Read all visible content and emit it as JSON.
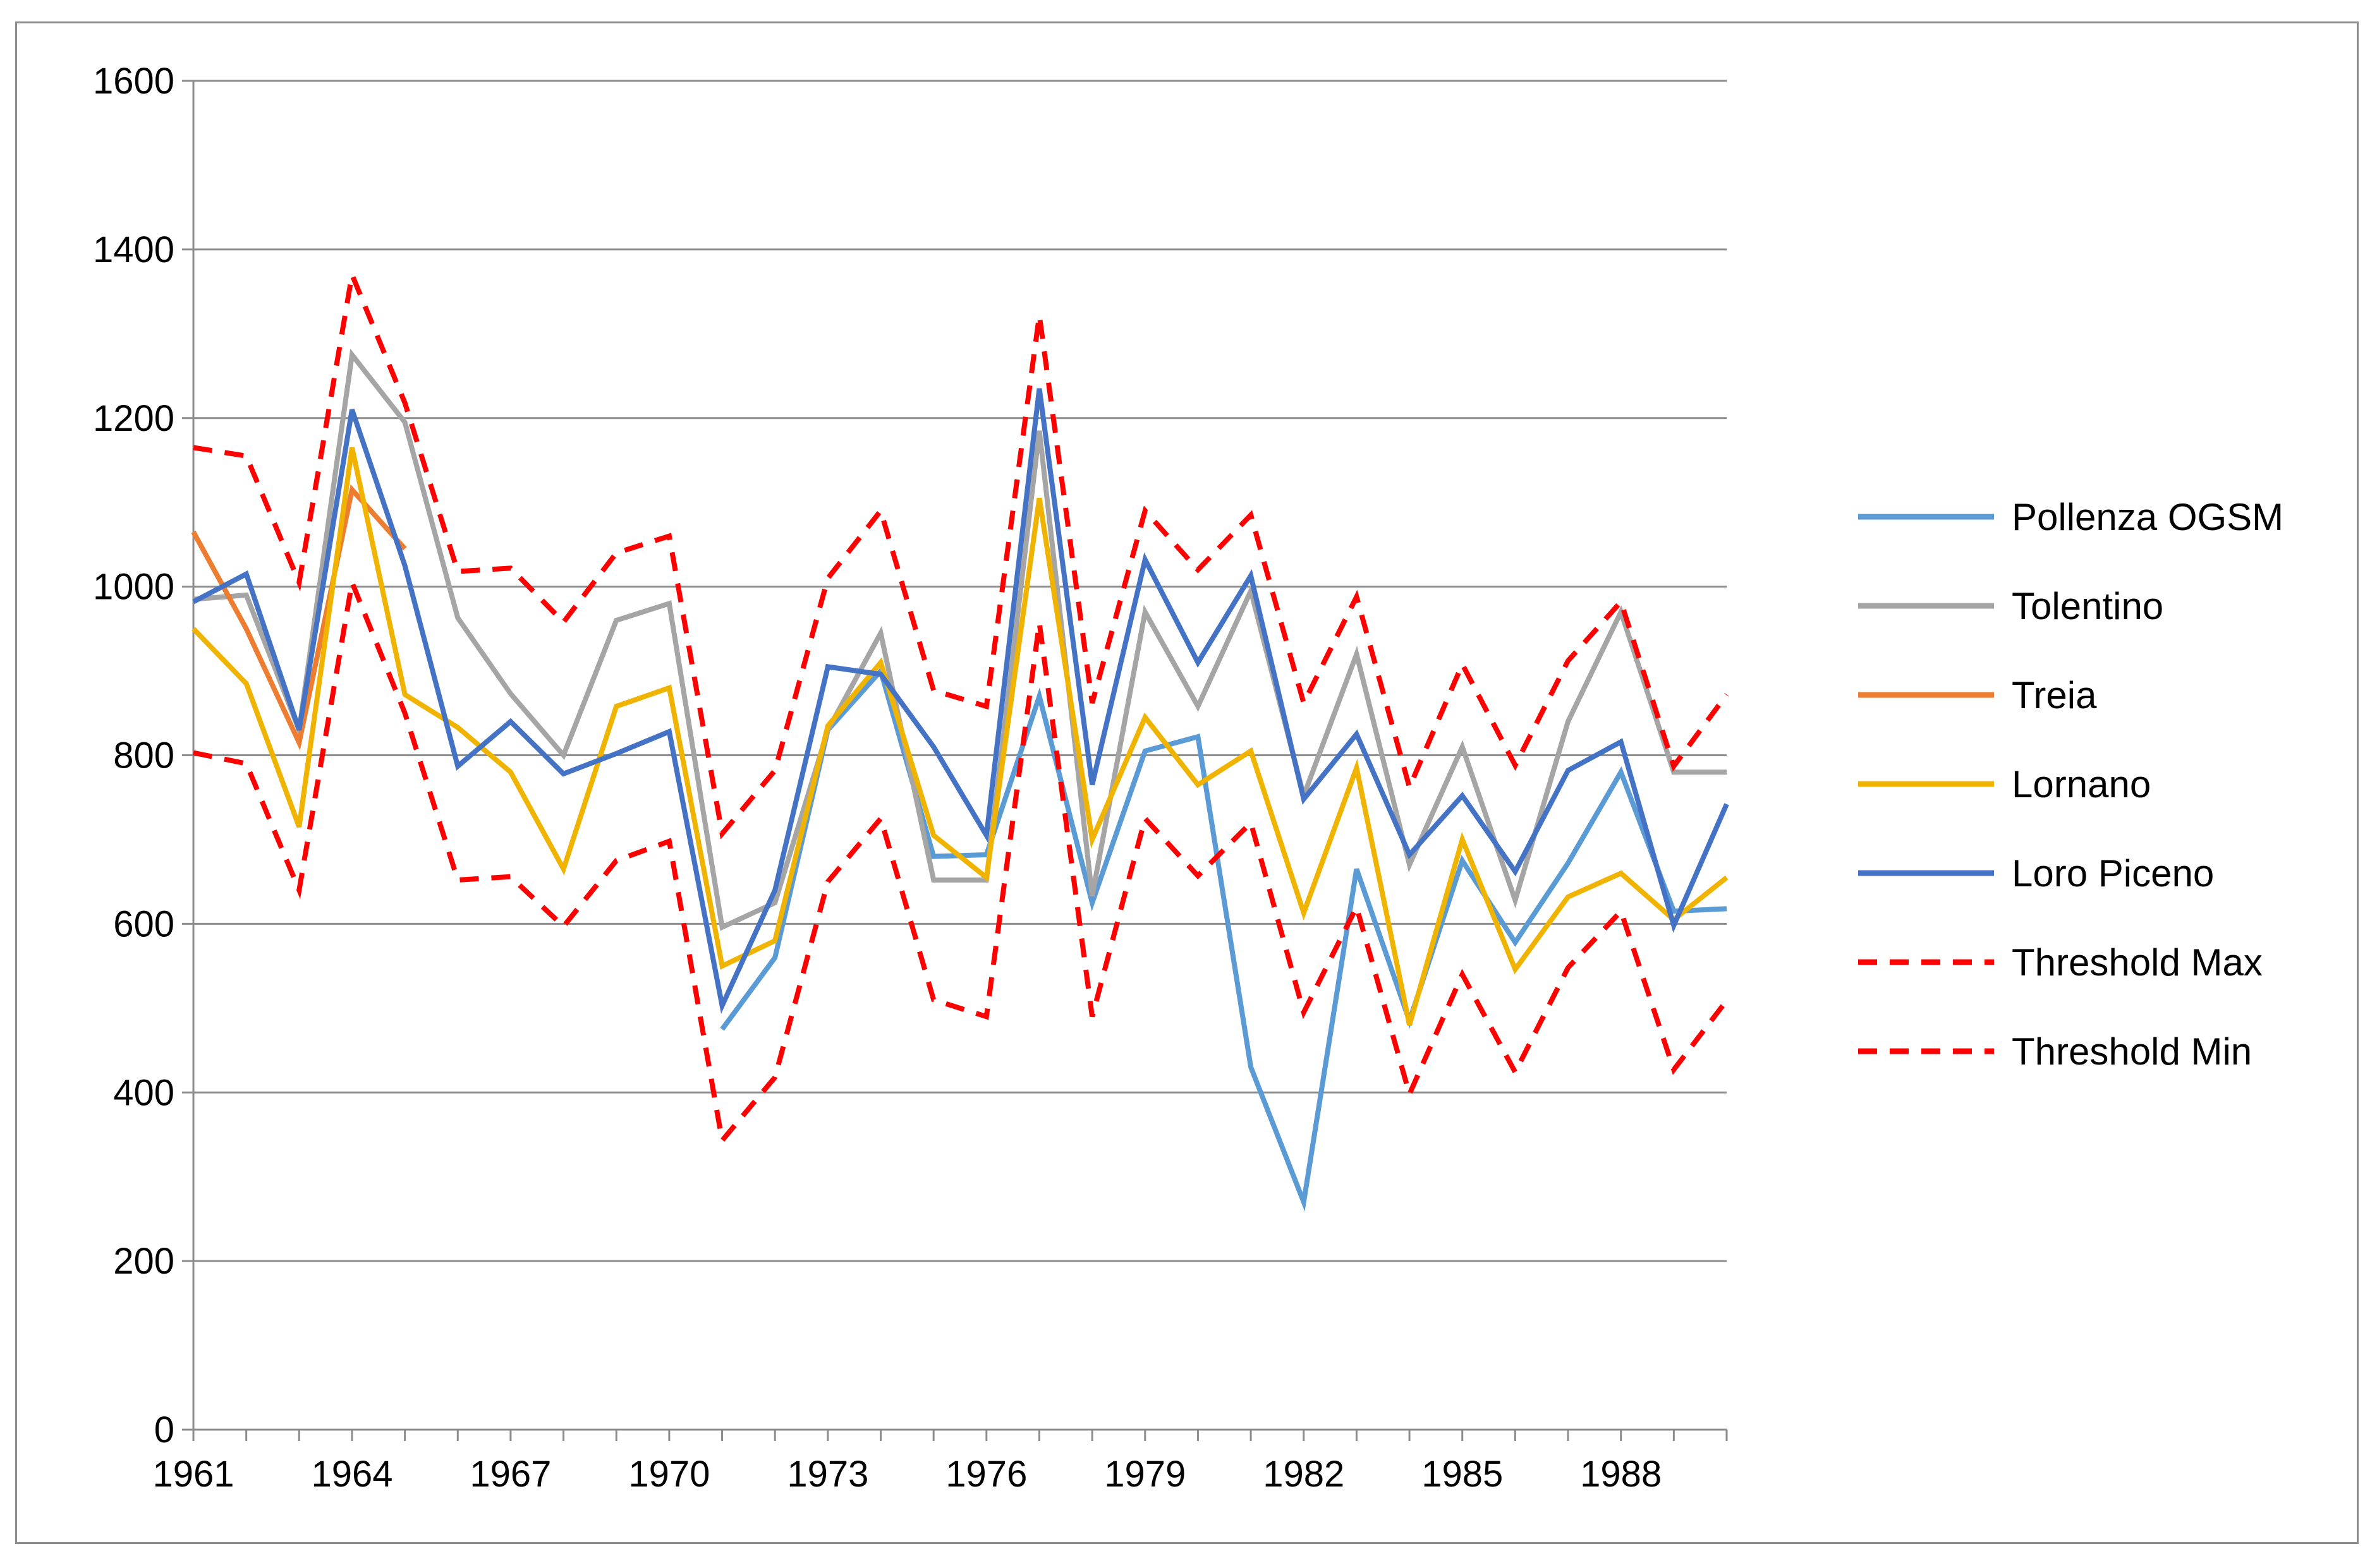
{
  "chart_data": {
    "type": "line",
    "title": "",
    "xlabel": "",
    "ylabel": "",
    "ylim": [
      0,
      1600
    ],
    "yticks": [
      0,
      200,
      400,
      600,
      800,
      1000,
      1200,
      1400,
      1600
    ],
    "x": [
      1961,
      1962,
      1963,
      1964,
      1965,
      1966,
      1967,
      1968,
      1969,
      1970,
      1971,
      1972,
      1973,
      1974,
      1975,
      1976,
      1977,
      1978,
      1979,
      1980,
      1981,
      1982,
      1983,
      1984,
      1985,
      1986,
      1987,
      1988,
      1989,
      1990
    ],
    "xtick_labels": [
      "1961",
      "1964",
      "1967",
      "1970",
      "1973",
      "1976",
      "1979",
      "1982",
      "1985",
      "1988"
    ],
    "grid": true,
    "legend_position": "right",
    "series": [
      {
        "name": "Pollenza OGSM",
        "color": "#5b9bd5",
        "dash": "solid",
        "values": [
          null,
          null,
          null,
          null,
          null,
          null,
          null,
          null,
          null,
          null,
          475,
          560,
          830,
          900,
          680,
          682,
          870,
          625,
          805,
          822,
          430,
          270,
          665,
          485,
          675,
          578,
          672,
          780,
          615,
          618
        ]
      },
      {
        "name": "Tolentino",
        "color": "#a5a5a5",
        "dash": "solid",
        "values": [
          985,
          990,
          830,
          1275,
          1195,
          963,
          873,
          800,
          960,
          980,
          596,
          625,
          830,
          945,
          652,
          652,
          1185,
          633,
          970,
          858,
          995,
          752,
          920,
          670,
          810,
          628,
          840,
          970,
          780,
          780
        ]
      },
      {
        "name": "Treia",
        "color": "#ed7d31",
        "dash": "solid",
        "values": [
          1065,
          950,
          815,
          1115,
          1045,
          null,
          null,
          null,
          null,
          null,
          null,
          null,
          null,
          null,
          null,
          null,
          null,
          null,
          null,
          null,
          null,
          null,
          null,
          null,
          null,
          null,
          null,
          null,
          null,
          null
        ]
      },
      {
        "name": "Lornano",
        "color": "#f0b400",
        "dash": "solid",
        "values": [
          950,
          885,
          715,
          1165,
          872,
          833,
          780,
          665,
          858,
          880,
          550,
          580,
          835,
          910,
          705,
          655,
          1105,
          700,
          845,
          765,
          805,
          613,
          785,
          480,
          700,
          546,
          632,
          660,
          605,
          655
        ]
      },
      {
        "name": "Loro Piceno",
        "color": "#4472c4",
        "dash": "solid",
        "values": [
          982,
          1015,
          830,
          1210,
          1025,
          787,
          840,
          778,
          802,
          828,
          503,
          640,
          905,
          896,
          810,
          705,
          1235,
          765,
          1032,
          910,
          1013,
          748,
          825,
          682,
          752,
          662,
          782,
          816,
          598,
          742
        ]
      },
      {
        "name": "Threshold Max",
        "color": "#ff0000",
        "dash": "dashed",
        "values": [
          1165,
          1155,
          1005,
          1370,
          1218,
          1018,
          1022,
          958,
          1040,
          1060,
          707,
          782,
          1010,
          1090,
          877,
          858,
          1322,
          862,
          1090,
          1020,
          1085,
          862,
          988,
          762,
          908,
          788,
          912,
          982,
          787,
          872
        ]
      },
      {
        "name": "Threshold Min",
        "color": "#ff0000",
        "dash": "dashed",
        "values": [
          803,
          790,
          640,
          1005,
          850,
          652,
          656,
          597,
          675,
          698,
          343,
          418,
          650,
          725,
          510,
          490,
          957,
          490,
          725,
          657,
          720,
          495,
          620,
          398,
          540,
          424,
          548,
          615,
          427,
          509
        ]
      }
    ]
  }
}
